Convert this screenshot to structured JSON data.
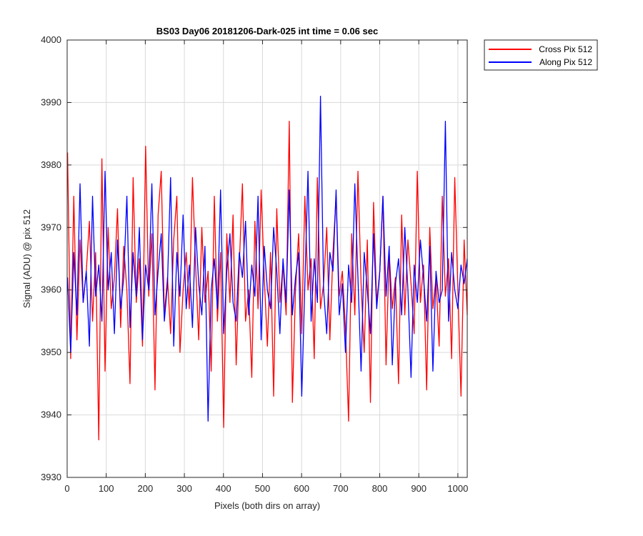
{
  "colors": {
    "cross": "#ff0000",
    "along": "#0000ff",
    "grid": "#d9d9d9",
    "axis": "#262626"
  },
  "chart_data": {
    "type": "line",
    "title": "BS03 Day06 20181206-Dark-025 int time = 0.06 sec",
    "xlabel": "Pixels (both dirs on array)",
    "ylabel": "Signal (ADU) @ pix 512",
    "xlim": [
      0,
      1024
    ],
    "ylim": [
      3930,
      4000
    ],
    "xticks": [
      0,
      100,
      200,
      300,
      400,
      500,
      600,
      700,
      800,
      900,
      1000
    ],
    "yticks": [
      3930,
      3940,
      3950,
      3960,
      3970,
      3980,
      3990,
      4000
    ],
    "grid": true,
    "legend_position": "outside-top-right",
    "x": {
      "start": 1,
      "end": 1024,
      "step": 8
    },
    "series": [
      {
        "name": "Cross Pix 512",
        "color": "#ff0000",
        "values": [
          3982,
          3949,
          3975,
          3952,
          3968,
          3958,
          3963,
          3971,
          3955,
          3966,
          3936,
          3981,
          3947,
          3970,
          3957,
          3962,
          3973,
          3954,
          3967,
          3960,
          3945,
          3978,
          3958,
          3965,
          3951,
          3983,
          3959,
          3969,
          3944,
          3972,
          3979,
          3956,
          3962,
          3953,
          3968,
          3975,
          3950,
          3960,
          3966,
          3957,
          3978,
          3964,
          3952,
          3970,
          3958,
          3963,
          3947,
          3975,
          3955,
          3966,
          3938,
          3969,
          3958,
          3972,
          3948,
          3964,
          3977,
          3955,
          3960,
          3946,
          3971,
          3957,
          3976,
          3962,
          3951,
          3966,
          3943,
          3973,
          3958,
          3964,
          3956,
          3987,
          3942,
          3960,
          3969,
          3953,
          3975,
          3960,
          3965,
          3949,
          3978,
          3957,
          3961,
          3970,
          3952,
          3966,
          3975,
          3959,
          3963,
          3954,
          3939,
          3969,
          3956,
          3979,
          3961,
          3950,
          3968,
          3942,
          3974,
          3958,
          3963,
          3975,
          3948,
          3966,
          3957,
          3962,
          3945,
          3972,
          3956,
          3968,
          3961,
          3953,
          3979,
          3958,
          3964,
          3944,
          3970,
          3957,
          3962,
          3951,
          3975,
          3959,
          3965,
          3949,
          3978,
          3960,
          3943,
          3968,
          3956
        ]
      },
      {
        "name": "Along Pix 512",
        "color": "#0000ff",
        "values": [
          3962,
          3950,
          3966,
          3956,
          3977,
          3958,
          3963,
          3951,
          3975,
          3959,
          3964,
          3955,
          3979,
          3960,
          3966,
          3953,
          3968,
          3957,
          3962,
          3975,
          3954,
          3966,
          3959,
          3970,
          3952,
          3964,
          3960,
          3977,
          3956,
          3963,
          3969,
          3955,
          3961,
          3978,
          3951,
          3966,
          3959,
          3972,
          3957,
          3964,
          3954,
          3970,
          3961,
          3956,
          3967,
          3939,
          3960,
          3965,
          3957,
          3976,
          3953,
          3963,
          3969,
          3958,
          3955,
          3966,
          3962,
          3971,
          3956,
          3964,
          3959,
          3975,
          3952,
          3967,
          3960,
          3957,
          3970,
          3963,
          3953,
          3965,
          3958,
          3976,
          3956,
          3962,
          3966,
          3943,
          3961,
          3979,
          3955,
          3965,
          3958,
          3991,
          3960,
          3953,
          3966,
          3963,
          3976,
          3956,
          3961,
          3950,
          3964,
          3958,
          3977,
          3962,
          3947,
          3966,
          3960,
          3953,
          3969,
          3957,
          3963,
          3975,
          3959,
          3967,
          3948,
          3961,
          3965,
          3956,
          3970,
          3960,
          3946,
          3964,
          3958,
          3968,
          3962,
          3955,
          3967,
          3947,
          3963,
          3958,
          3960,
          3987,
          3955,
          3966,
          3960,
          3957,
          3964,
          3961,
          3965
        ]
      }
    ]
  }
}
